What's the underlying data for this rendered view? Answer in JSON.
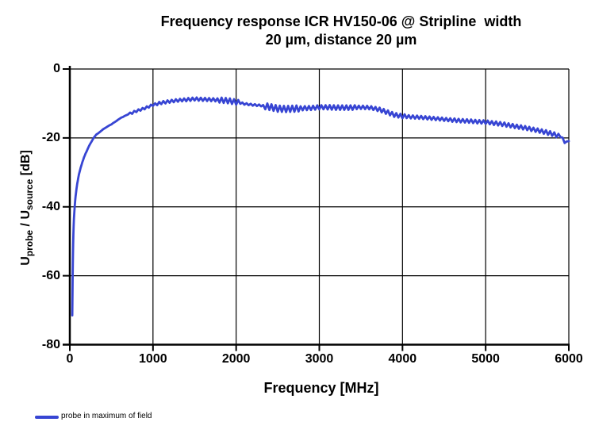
{
  "page": {
    "background": "#ffffff"
  },
  "title": {
    "line1": "Frequency response ICR HV150-06 @ Stripline  width",
    "line2": "20 µm, distance 20 µm"
  },
  "axes": {
    "x_label": "Frequency [MHz]",
    "y_label": {
      "u1": "U",
      "sub1": "probe",
      "mid": " / U",
      "sub2": "source",
      "suffix": " [dB]"
    }
  },
  "legend": {
    "label": "probe in maximum of field"
  },
  "chart_data": {
    "type": "line",
    "title": "Frequency response ICR HV150-06 @ Stripline width 20 µm, distance 20 µm",
    "xlabel": "Frequency [MHz]",
    "ylabel": "Uprobe / Usource [dB]",
    "xlim": [
      0,
      6000
    ],
    "ylim": [
      -80,
      0
    ],
    "xticks": [
      0,
      1000,
      2000,
      3000,
      4000,
      5000,
      6000
    ],
    "yticks": [
      0,
      -20,
      -40,
      -60,
      -80
    ],
    "grid": true,
    "grid_color": "#000000",
    "legend_position": "bottom-left",
    "series": [
      {
        "name": "probe in maximum of field",
        "color": "#3745d3",
        "x_unit": "MHz",
        "y_unit": "dB",
        "description": "Rises steeply from -71.5 dB at 30 MHz, plateaus near -9 dB around 1400-1800 MHz, ripples of ~0.3-0.9 dB, slow roll-off to about -21 dB at 6000 MHz",
        "envelope_points": [
          [
            30,
            -71.5
          ],
          [
            32,
            -65
          ],
          [
            34,
            -60
          ],
          [
            36,
            -56.5
          ],
          [
            38,
            -53.5
          ],
          [
            40,
            -51
          ],
          [
            43,
            -48
          ],
          [
            46,
            -45.7
          ],
          [
            50,
            -43.4
          ],
          [
            55,
            -41.2
          ],
          [
            60,
            -39.5
          ],
          [
            65,
            -38.1
          ],
          [
            70,
            -36.9
          ],
          [
            75,
            -35.8
          ],
          [
            80,
            -34.8
          ],
          [
            85,
            -34
          ],
          [
            90,
            -33.2
          ],
          [
            95,
            -32.5
          ],
          [
            100,
            -31.8
          ],
          [
            110,
            -30.6
          ],
          [
            120,
            -29.6
          ],
          [
            130,
            -28.7
          ],
          [
            140,
            -27.9
          ],
          [
            150,
            -27.1
          ],
          [
            160,
            -26.4
          ],
          [
            170,
            -25.7
          ],
          [
            180,
            -25.1
          ],
          [
            190,
            -24.5
          ],
          [
            200,
            -24
          ],
          [
            215,
            -23.2
          ],
          [
            230,
            -22.4
          ],
          [
            245,
            -21.7
          ],
          [
            260,
            -21.1
          ],
          [
            275,
            -20.5
          ],
          [
            290,
            -19.9
          ],
          [
            305,
            -19.4
          ],
          [
            320,
            -19
          ],
          [
            340,
            -18.7
          ],
          [
            360,
            -18.3
          ],
          [
            380,
            -17.9
          ],
          [
            400,
            -17.5
          ],
          [
            420,
            -17.2
          ],
          [
            440,
            -16.9
          ],
          [
            460,
            -16.6
          ],
          [
            480,
            -16.3
          ],
          [
            500,
            -16.1
          ],
          [
            520,
            -15.7
          ],
          [
            540,
            -15.4
          ],
          [
            560,
            -15.1
          ],
          [
            580,
            -14.7
          ],
          [
            600,
            -14.4
          ],
          [
            620,
            -14.1
          ],
          [
            640,
            -13.9
          ],
          [
            660,
            -13.6
          ],
          [
            680,
            -13.4
          ],
          [
            700,
            -13.2
          ],
          [
            750,
            -12.7
          ],
          [
            800,
            -12.2
          ],
          [
            850,
            -11.8
          ],
          [
            900,
            -11.4
          ],
          [
            950,
            -10.9
          ],
          [
            1000,
            -10.4
          ],
          [
            1100,
            -9.8
          ],
          [
            1200,
            -9.4
          ],
          [
            1300,
            -9.1
          ],
          [
            1400,
            -8.9
          ],
          [
            1500,
            -8.7
          ],
          [
            1600,
            -8.8
          ],
          [
            1700,
            -8.9
          ],
          [
            1800,
            -9.0
          ],
          [
            1900,
            -9.2
          ],
          [
            2000,
            -9.6
          ],
          [
            2100,
            -10.1
          ],
          [
            2200,
            -10.4
          ],
          [
            2300,
            -10.6
          ],
          [
            2400,
            -11.0
          ],
          [
            2500,
            -11.5
          ],
          [
            2600,
            -11.6
          ],
          [
            2700,
            -11.5
          ],
          [
            2800,
            -11.4
          ],
          [
            2900,
            -11.3
          ],
          [
            3000,
            -11.1
          ],
          [
            3100,
            -11.1
          ],
          [
            3200,
            -11.2
          ],
          [
            3300,
            -11.2
          ],
          [
            3400,
            -11.2
          ],
          [
            3500,
            -11.1
          ],
          [
            3600,
            -11.2
          ],
          [
            3700,
            -11.6
          ],
          [
            3800,
            -12.4
          ],
          [
            3900,
            -13.3
          ],
          [
            4000,
            -13.7
          ],
          [
            4100,
            -13.9
          ],
          [
            4200,
            -14.0
          ],
          [
            4300,
            -14.2
          ],
          [
            4400,
            -14.4
          ],
          [
            4500,
            -14.6
          ],
          [
            4600,
            -14.8
          ],
          [
            4700,
            -15.0
          ],
          [
            4800,
            -15.1
          ],
          [
            4900,
            -15.3
          ],
          [
            5000,
            -15.4
          ],
          [
            5100,
            -15.7
          ],
          [
            5200,
            -16.0
          ],
          [
            5300,
            -16.4
          ],
          [
            5400,
            -16.8
          ],
          [
            5500,
            -17.2
          ],
          [
            5600,
            -17.7
          ],
          [
            5700,
            -18.2
          ],
          [
            5800,
            -18.8
          ],
          [
            5900,
            -19.6
          ],
          [
            5920,
            -19.9
          ],
          [
            5940,
            -20.6
          ],
          [
            5955,
            -21.7
          ],
          [
            5970,
            -21.0
          ],
          [
            5985,
            -21.5
          ],
          [
            6000,
            -20.8
          ]
        ],
        "ripple_period_mhz": 50,
        "ripple_bands": [
          {
            "from": 700,
            "to": 1050,
            "amp": 0.3
          },
          {
            "from": 1050,
            "to": 1400,
            "amp": 0.4
          },
          {
            "from": 1400,
            "to": 1800,
            "amp": 0.45
          },
          {
            "from": 1800,
            "to": 2050,
            "amp": 0.75
          },
          {
            "from": 2050,
            "to": 2330,
            "amp": 0.25
          },
          {
            "from": 2330,
            "to": 2760,
            "amp": 0.9
          },
          {
            "from": 2760,
            "to": 3100,
            "amp": 0.6
          },
          {
            "from": 3100,
            "to": 3450,
            "amp": 0.65
          },
          {
            "from": 3450,
            "to": 3700,
            "amp": 0.5
          },
          {
            "from": 3700,
            "to": 4050,
            "amp": 0.6
          },
          {
            "from": 4050,
            "to": 4600,
            "amp": 0.45
          },
          {
            "from": 4600,
            "to": 5100,
            "amp": 0.5
          },
          {
            "from": 5100,
            "to": 5700,
            "amp": 0.55
          },
          {
            "from": 5700,
            "to": 5900,
            "amp": 0.6
          },
          {
            "from": 5900,
            "to": 6001,
            "amp": 0.15
          }
        ]
      }
    ]
  }
}
